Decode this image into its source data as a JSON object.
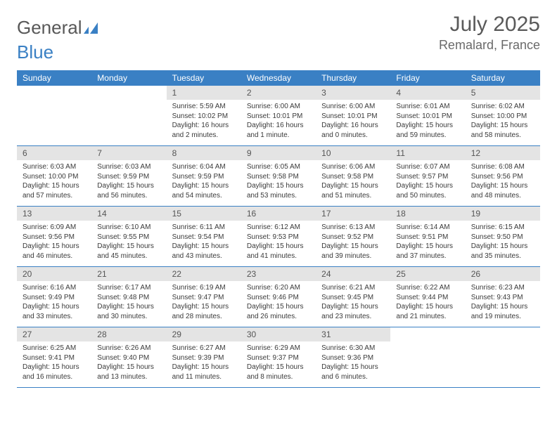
{
  "logo": {
    "word1": "General",
    "word2": "Blue"
  },
  "title": "July 2025",
  "location": "Remalard, France",
  "colors": {
    "header_bg": "#3a80c4",
    "header_text": "#ffffff",
    "daynum_bg": "#e4e4e4",
    "border": "#3a80c4",
    "logo_gray": "#585858",
    "logo_blue": "#3a80c4"
  },
  "fonts": {
    "title_size": 30,
    "location_size": 18,
    "head_size": 12,
    "cell_size": 10
  },
  "weekdays": [
    "Sunday",
    "Monday",
    "Tuesday",
    "Wednesday",
    "Thursday",
    "Friday",
    "Saturday"
  ],
  "grid": {
    "weeks": 5,
    "first_day_col": 2
  },
  "days": [
    {
      "n": "1",
      "sunrise": "5:59 AM",
      "sunset": "10:02 PM",
      "daylight": "16 hours and 2 minutes."
    },
    {
      "n": "2",
      "sunrise": "6:00 AM",
      "sunset": "10:01 PM",
      "daylight": "16 hours and 1 minute."
    },
    {
      "n": "3",
      "sunrise": "6:00 AM",
      "sunset": "10:01 PM",
      "daylight": "16 hours and 0 minutes."
    },
    {
      "n": "4",
      "sunrise": "6:01 AM",
      "sunset": "10:01 PM",
      "daylight": "15 hours and 59 minutes."
    },
    {
      "n": "5",
      "sunrise": "6:02 AM",
      "sunset": "10:00 PM",
      "daylight": "15 hours and 58 minutes."
    },
    {
      "n": "6",
      "sunrise": "6:03 AM",
      "sunset": "10:00 PM",
      "daylight": "15 hours and 57 minutes."
    },
    {
      "n": "7",
      "sunrise": "6:03 AM",
      "sunset": "9:59 PM",
      "daylight": "15 hours and 56 minutes."
    },
    {
      "n": "8",
      "sunrise": "6:04 AM",
      "sunset": "9:59 PM",
      "daylight": "15 hours and 54 minutes."
    },
    {
      "n": "9",
      "sunrise": "6:05 AM",
      "sunset": "9:58 PM",
      "daylight": "15 hours and 53 minutes."
    },
    {
      "n": "10",
      "sunrise": "6:06 AM",
      "sunset": "9:58 PM",
      "daylight": "15 hours and 51 minutes."
    },
    {
      "n": "11",
      "sunrise": "6:07 AM",
      "sunset": "9:57 PM",
      "daylight": "15 hours and 50 minutes."
    },
    {
      "n": "12",
      "sunrise": "6:08 AM",
      "sunset": "9:56 PM",
      "daylight": "15 hours and 48 minutes."
    },
    {
      "n": "13",
      "sunrise": "6:09 AM",
      "sunset": "9:56 PM",
      "daylight": "15 hours and 46 minutes."
    },
    {
      "n": "14",
      "sunrise": "6:10 AM",
      "sunset": "9:55 PM",
      "daylight": "15 hours and 45 minutes."
    },
    {
      "n": "15",
      "sunrise": "6:11 AM",
      "sunset": "9:54 PM",
      "daylight": "15 hours and 43 minutes."
    },
    {
      "n": "16",
      "sunrise": "6:12 AM",
      "sunset": "9:53 PM",
      "daylight": "15 hours and 41 minutes."
    },
    {
      "n": "17",
      "sunrise": "6:13 AM",
      "sunset": "9:52 PM",
      "daylight": "15 hours and 39 minutes."
    },
    {
      "n": "18",
      "sunrise": "6:14 AM",
      "sunset": "9:51 PM",
      "daylight": "15 hours and 37 minutes."
    },
    {
      "n": "19",
      "sunrise": "6:15 AM",
      "sunset": "9:50 PM",
      "daylight": "15 hours and 35 minutes."
    },
    {
      "n": "20",
      "sunrise": "6:16 AM",
      "sunset": "9:49 PM",
      "daylight": "15 hours and 33 minutes."
    },
    {
      "n": "21",
      "sunrise": "6:17 AM",
      "sunset": "9:48 PM",
      "daylight": "15 hours and 30 minutes."
    },
    {
      "n": "22",
      "sunrise": "6:19 AM",
      "sunset": "9:47 PM",
      "daylight": "15 hours and 28 minutes."
    },
    {
      "n": "23",
      "sunrise": "6:20 AM",
      "sunset": "9:46 PM",
      "daylight": "15 hours and 26 minutes."
    },
    {
      "n": "24",
      "sunrise": "6:21 AM",
      "sunset": "9:45 PM",
      "daylight": "15 hours and 23 minutes."
    },
    {
      "n": "25",
      "sunrise": "6:22 AM",
      "sunset": "9:44 PM",
      "daylight": "15 hours and 21 minutes."
    },
    {
      "n": "26",
      "sunrise": "6:23 AM",
      "sunset": "9:43 PM",
      "daylight": "15 hours and 19 minutes."
    },
    {
      "n": "27",
      "sunrise": "6:25 AM",
      "sunset": "9:41 PM",
      "daylight": "15 hours and 16 minutes."
    },
    {
      "n": "28",
      "sunrise": "6:26 AM",
      "sunset": "9:40 PM",
      "daylight": "15 hours and 13 minutes."
    },
    {
      "n": "29",
      "sunrise": "6:27 AM",
      "sunset": "9:39 PM",
      "daylight": "15 hours and 11 minutes."
    },
    {
      "n": "30",
      "sunrise": "6:29 AM",
      "sunset": "9:37 PM",
      "daylight": "15 hours and 8 minutes."
    },
    {
      "n": "31",
      "sunrise": "6:30 AM",
      "sunset": "9:36 PM",
      "daylight": "15 hours and 6 minutes."
    }
  ],
  "labels": {
    "sunrise": "Sunrise:",
    "sunset": "Sunset:",
    "daylight": "Daylight:"
  }
}
